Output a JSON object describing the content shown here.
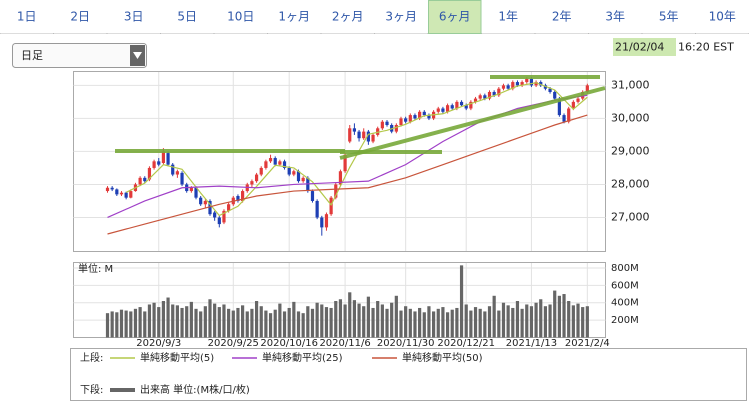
{
  "tabs": [
    "1日",
    "2日",
    "3日",
    "5日",
    "10日",
    "1ヶ月",
    "2ヶ月",
    "3ヶ月",
    "6ヶ月",
    "1年",
    "2年",
    "3年",
    "5年",
    "10年"
  ],
  "active_tab": 8,
  "period_select": "日足",
  "timestamp": {
    "date": "21/02/04",
    "time": "16:20 EST"
  },
  "chart_data": [
    {
      "type": "candlestick",
      "up_color": "#e23a3a",
      "down_color": "#1e3fb4",
      "xlim": [
        -7.3,
        106.9
      ],
      "ylim": [
        25970,
        31420
      ],
      "yticks": [
        {
          "value": 27000,
          "label": "27,000"
        },
        {
          "value": 28000,
          "label": "28,000"
        },
        {
          "value": 29000,
          "label": "29,000"
        },
        {
          "value": 30000,
          "label": "30,000"
        },
        {
          "value": 31000,
          "label": "31,000"
        }
      ],
      "xticks": [
        {
          "value": 11,
          "label": "2020/9/3"
        },
        {
          "value": 27,
          "label": "2020/9/25"
        },
        {
          "value": 39,
          "label": "2020/10/16"
        },
        {
          "value": 51,
          "label": "2020/11/6"
        },
        {
          "value": 64,
          "label": "2020/11/30"
        },
        {
          "value": 77,
          "label": "2020/12/21"
        },
        {
          "value": 91,
          "label": "2021/1/13"
        },
        {
          "value": 103,
          "label": "2021/2/4"
        }
      ],
      "candles": [
        [
          27800,
          27950,
          27750,
          27900
        ],
        [
          27900,
          27950,
          27800,
          27850
        ],
        [
          27850,
          27880,
          27650,
          27700
        ],
        [
          27700,
          27800,
          27650,
          27750
        ],
        [
          27750,
          27780,
          27550,
          27600
        ],
        [
          27600,
          27850,
          27580,
          27800
        ],
        [
          27800,
          28050,
          27780,
          28000
        ],
        [
          28000,
          28250,
          27950,
          28200
        ],
        [
          28200,
          28250,
          28050,
          28100
        ],
        [
          28150,
          28550,
          28100,
          28500
        ],
        [
          28500,
          28750,
          28450,
          28700
        ],
        [
          28700,
          28800,
          28550,
          28600
        ],
        [
          28650,
          29100,
          28600,
          29000
        ],
        [
          28950,
          29000,
          28550,
          28600
        ],
        [
          28600,
          28650,
          28250,
          28300
        ],
        [
          28300,
          28450,
          28200,
          28400
        ],
        [
          28350,
          28400,
          27950,
          28000
        ],
        [
          28000,
          28050,
          27750,
          27800
        ],
        [
          27800,
          27950,
          27750,
          27900
        ],
        [
          27900,
          27950,
          27550,
          27600
        ],
        [
          27600,
          27650,
          27350,
          27400
        ],
        [
          27400,
          27550,
          27300,
          27500
        ],
        [
          27500,
          27550,
          27050,
          27100
        ],
        [
          27150,
          27200,
          26900,
          27000
        ],
        [
          27000,
          27050,
          26700,
          26800
        ],
        [
          26850,
          27250,
          26800,
          27200
        ],
        [
          27200,
          27450,
          27150,
          27400
        ],
        [
          27400,
          27650,
          27350,
          27600
        ],
        [
          27650,
          27700,
          27450,
          27500
        ],
        [
          27500,
          27850,
          27450,
          27800
        ],
        [
          27800,
          28050,
          27750,
          28000
        ],
        [
          28000,
          28150,
          27900,
          28100
        ],
        [
          28100,
          28350,
          28050,
          28300
        ],
        [
          28300,
          28550,
          28250,
          28500
        ],
        [
          28500,
          28750,
          28450,
          28700
        ],
        [
          28700,
          28900,
          28650,
          28800
        ],
        [
          28800,
          28850,
          28550,
          28600
        ],
        [
          28600,
          28750,
          28550,
          28700
        ],
        [
          28700,
          28750,
          28450,
          28500
        ],
        [
          28500,
          28550,
          28250,
          28300
        ],
        [
          28300,
          28450,
          28250,
          28400
        ],
        [
          28400,
          28450,
          28050,
          28100
        ],
        [
          28100,
          28250,
          28050,
          28200
        ],
        [
          28200,
          28250,
          27750,
          27800
        ],
        [
          27800,
          27850,
          27450,
          27500
        ],
        [
          27500,
          27550,
          26950,
          27000
        ],
        [
          27000,
          27050,
          26450,
          26700
        ],
        [
          26700,
          27150,
          26600,
          27100
        ],
        [
          27100,
          27650,
          27050,
          27600
        ],
        [
          27600,
          28050,
          27550,
          28000
        ],
        [
          28000,
          28450,
          27950,
          28400
        ],
        [
          28400,
          28950,
          28350,
          28900
        ],
        [
          29300,
          29800,
          29250,
          29700
        ],
        [
          29700,
          29850,
          29500,
          29600
        ],
        [
          29600,
          29650,
          29300,
          29400
        ],
        [
          29400,
          29700,
          29350,
          29600
        ],
        [
          29600,
          29650,
          29200,
          29300
        ],
        [
          29300,
          29550,
          29250,
          29500
        ],
        [
          29500,
          29750,
          29450,
          29700
        ],
        [
          29700,
          29950,
          29650,
          29900
        ],
        [
          29900,
          29950,
          29750,
          29800
        ],
        [
          29800,
          29850,
          29550,
          29600
        ],
        [
          29600,
          29850,
          29550,
          29800
        ],
        [
          29800,
          30050,
          29750,
          30000
        ],
        [
          30000,
          30050,
          29850,
          29900
        ],
        [
          29900,
          30150,
          29850,
          30100
        ],
        [
          30100,
          30150,
          29950,
          30000
        ],
        [
          30000,
          30250,
          29950,
          30200
        ],
        [
          30200,
          30250,
          30050,
          30100
        ],
        [
          30100,
          30150,
          29950,
          30000
        ],
        [
          30000,
          30250,
          29950,
          30200
        ],
        [
          30200,
          30350,
          30150,
          30300
        ],
        [
          30300,
          30350,
          30150,
          30200
        ],
        [
          30200,
          30450,
          30150,
          30400
        ],
        [
          30400,
          30450,
          30250,
          30300
        ],
        [
          30300,
          30550,
          30250,
          30500
        ],
        [
          30500,
          30550,
          30350,
          30400
        ],
        [
          30400,
          30450,
          30250,
          30300
        ],
        [
          30300,
          30550,
          30250,
          30500
        ],
        [
          30500,
          30650,
          30450,
          30600
        ],
        [
          30600,
          30750,
          30550,
          30700
        ],
        [
          30700,
          30750,
          30550,
          30600
        ],
        [
          30600,
          30850,
          30550,
          30800
        ],
        [
          30800,
          30850,
          30650,
          30700
        ],
        [
          30700,
          30950,
          30650,
          30900
        ],
        [
          30900,
          31050,
          30850,
          31000
        ],
        [
          31000,
          31050,
          30850,
          30900
        ],
        [
          30900,
          31150,
          30850,
          31100
        ],
        [
          31100,
          31150,
          30950,
          31000
        ],
        [
          31000,
          31150,
          30950,
          31100
        ],
        [
          31100,
          31250,
          31050,
          31200
        ],
        [
          31200,
          31250,
          30950,
          31000
        ],
        [
          31000,
          31150,
          30950,
          31100
        ],
        [
          31100,
          31150,
          30950,
          31000
        ],
        [
          31000,
          31050,
          30850,
          30900
        ],
        [
          30900,
          30950,
          30750,
          30800
        ],
        [
          30800,
          30850,
          30550,
          30600
        ],
        [
          30600,
          30650,
          30050,
          30100
        ],
        [
          30100,
          30150,
          29850,
          29900
        ],
        [
          29900,
          30350,
          29850,
          30300
        ],
        [
          30300,
          30550,
          30250,
          30500
        ],
        [
          30500,
          30650,
          30450,
          30600
        ],
        [
          30600,
          30850,
          30550,
          30800
        ],
        [
          30800,
          31050,
          30750,
          31000
        ]
      ],
      "series": [
        {
          "name": "単純移動平均(5)",
          "color": "#b4c84a",
          "x": [
            4,
            8,
            12,
            16,
            20,
            24,
            28,
            32,
            36,
            40,
            44,
            48,
            52,
            56,
            60,
            64,
            68,
            72,
            76,
            80,
            84,
            88,
            92,
            96,
            100,
            103
          ],
          "values": [
            27760,
            28040,
            28600,
            28460,
            27740,
            27060,
            27340,
            27940,
            28580,
            28500,
            28080,
            27380,
            28520,
            29520,
            29640,
            29820,
            30080,
            30140,
            30360,
            30540,
            30740,
            30980,
            31080,
            30860,
            30280,
            30640
          ]
        },
        {
          "name": "単純移動平均(25)",
          "color": "#a040c8",
          "x": [
            0,
            8,
            16,
            24,
            32,
            40,
            48,
            56,
            64,
            72,
            80,
            88,
            96,
            103
          ],
          "values": [
            27000,
            27500,
            27900,
            27950,
            27900,
            28000,
            28050,
            28100,
            28600,
            29300,
            29900,
            30300,
            30550,
            30700
          ]
        },
        {
          "name": "単純移動平均(50)",
          "color": "#c8553c",
          "x": [
            0,
            8,
            16,
            24,
            32,
            40,
            48,
            56,
            64,
            72,
            80,
            88,
            96,
            103
          ],
          "values": [
            26500,
            26800,
            27100,
            27400,
            27650,
            27800,
            27850,
            27900,
            28200,
            28600,
            29000,
            29400,
            29800,
            30100
          ]
        }
      ]
    },
    {
      "type": "bar",
      "unit_label": "単位: M",
      "color": "#666666",
      "name": "出来高 単位:(M株/口/枚)",
      "ylim": [
        0,
        863
      ],
      "yticks": [
        {
          "value": 200,
          "label": "200M"
        },
        {
          "value": 400,
          "label": "400M"
        },
        {
          "value": 600,
          "label": "600M"
        },
        {
          "value": 800,
          "label": "800M"
        }
      ],
      "values": [
        280,
        300,
        290,
        320,
        310,
        300,
        330,
        350,
        300,
        380,
        400,
        350,
        420,
        460,
        380,
        370,
        340,
        360,
        410,
        330,
        300,
        360,
        440,
        390,
        350,
        380,
        330,
        310,
        340,
        370,
        300,
        330,
        420,
        360,
        310,
        280,
        320,
        390,
        300,
        340,
        410,
        300,
        280,
        360,
        330,
        400,
        380,
        350,
        340,
        420,
        440,
        380,
        520,
        430,
        390,
        360,
        470,
        340,
        420,
        380,
        330,
        400,
        480,
        310,
        360,
        330,
        300,
        340,
        290,
        360,
        300,
        330,
        350,
        290,
        320,
        340,
        830,
        380,
        310,
        350,
        330,
        300,
        360,
        480,
        310,
        400,
        370,
        340,
        420,
        330,
        380,
        360,
        400,
        440,
        360,
        380,
        540,
        480,
        500,
        420,
        370,
        390,
        350,
        360
      ]
    }
  ],
  "legend": {
    "upper_label": "上段:",
    "lower_label": "下段:"
  }
}
